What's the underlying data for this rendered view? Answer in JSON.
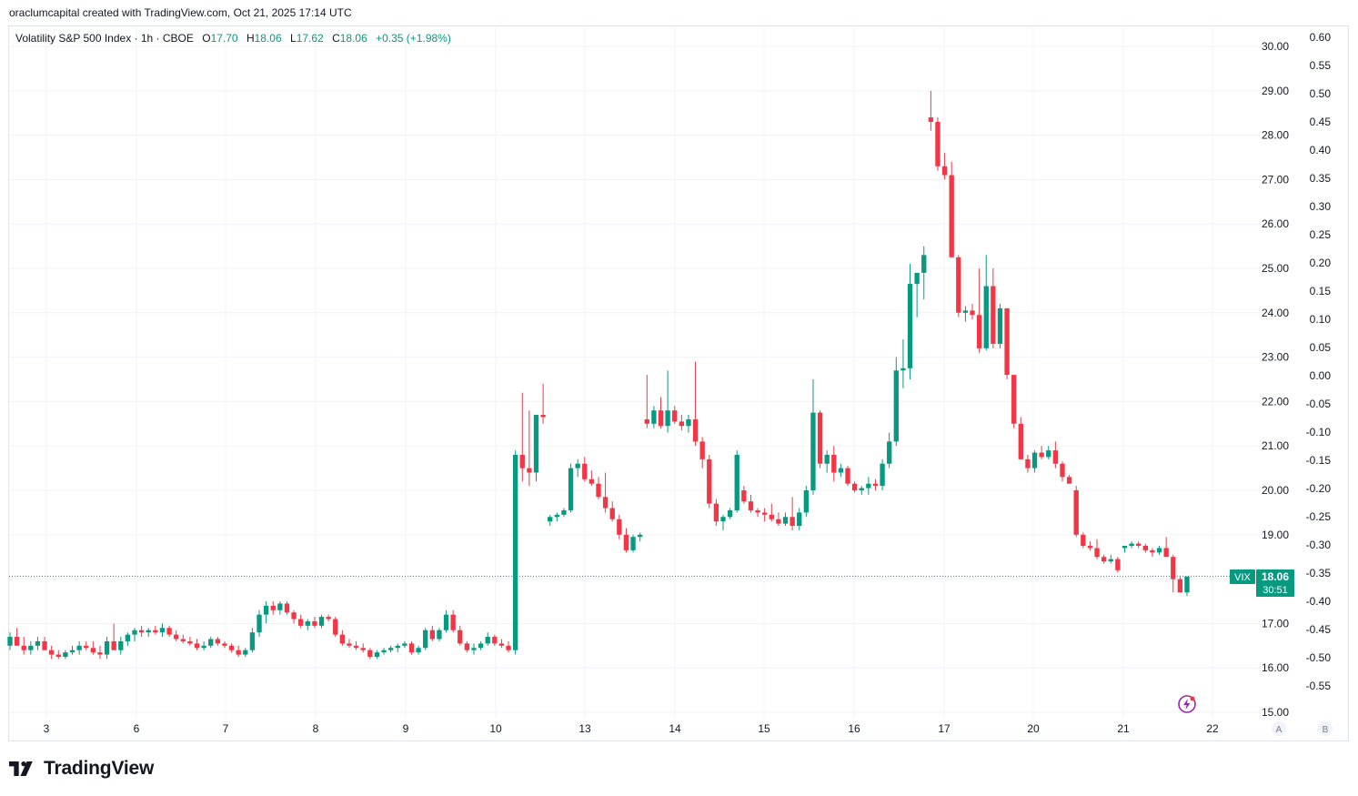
{
  "caption": "oraclumcapital created with TradingView.com, Oct 21, 2025 17:14 UTC",
  "legend": {
    "symbol": "Volatility S&P 500 Index · 1h · CBOE",
    "o_label": "O",
    "o_value": "17.70",
    "h_label": "H",
    "h_value": "18.06",
    "l_label": "L",
    "l_value": "17.62",
    "c_label": "C",
    "c_value": "18.06",
    "change": "+0.35 (+1.98%)"
  },
  "price_tag": {
    "ticker": "VIX",
    "price": "18.06",
    "countdown": "30:51"
  },
  "scale_buttons": [
    "A",
    "B"
  ],
  "brand": {
    "name": "TradingView",
    "logo_icon": "tradingview-logo-icon"
  },
  "colors": {
    "up": "#089981",
    "down": "#f23645",
    "grid": "#f0f3fa",
    "text": "#131722",
    "last": "#089981"
  },
  "chart_data": {
    "type": "candlestick",
    "title": "Volatility S&P 500 Index · 1h · CBOE",
    "x_ticks": [
      "3",
      "6",
      "7",
      "8",
      "9",
      "10",
      "13",
      "14",
      "15",
      "16",
      "17",
      "20",
      "21",
      "22"
    ],
    "y_left_label_ticks": [
      "15.00",
      "16.00",
      "17.00",
      "18.00",
      "19.00",
      "20.00",
      "21.00",
      "22.00",
      "23.00",
      "24.00",
      "25.00",
      "26.00",
      "27.00",
      "28.00",
      "29.00",
      "30.00"
    ],
    "y_right_ticks": [
      "0.60",
      "0.55",
      "0.50",
      "0.45",
      "0.40",
      "0.35",
      "0.30",
      "0.25",
      "0.20",
      "0.15",
      "0.10",
      "0.05",
      "0.00",
      "-0.05",
      "-0.10",
      "-0.15",
      "-0.20",
      "-0.25",
      "-0.30",
      "-0.35",
      "-0.40",
      "-0.45",
      "-0.50",
      "-0.55"
    ],
    "ylim": [
      15,
      30
    ],
    "last_price": 18.06,
    "grid": true,
    "candles": [
      [
        16.5,
        16.8,
        16.4,
        16.7
      ],
      [
        16.7,
        16.9,
        16.5,
        16.5
      ],
      [
        16.5,
        16.7,
        16.3,
        16.4
      ],
      [
        16.4,
        16.6,
        16.3,
        16.5
      ],
      [
        16.5,
        16.7,
        16.4,
        16.6
      ],
      [
        16.6,
        16.7,
        16.4,
        16.4
      ],
      [
        16.4,
        16.5,
        16.2,
        16.3
      ],
      [
        16.3,
        16.4,
        16.2,
        16.25
      ],
      [
        16.25,
        16.4,
        16.2,
        16.35
      ],
      [
        16.35,
        16.5,
        16.3,
        16.4
      ],
      [
        16.4,
        16.6,
        16.3,
        16.5
      ],
      [
        16.5,
        16.6,
        16.4,
        16.45
      ],
      [
        16.45,
        16.6,
        16.3,
        16.35
      ],
      [
        16.35,
        16.5,
        16.2,
        16.3
      ],
      [
        16.3,
        16.7,
        16.2,
        16.6
      ],
      [
        16.6,
        17.0,
        16.4,
        16.4
      ],
      [
        16.4,
        16.7,
        16.3,
        16.6
      ],
      [
        16.6,
        16.8,
        16.5,
        16.75
      ],
      [
        16.75,
        16.9,
        16.6,
        16.85
      ],
      [
        16.85,
        16.95,
        16.7,
        16.8
      ],
      [
        16.8,
        16.9,
        16.7,
        16.85
      ],
      [
        16.85,
        16.95,
        16.75,
        16.8
      ],
      [
        16.8,
        17.0,
        16.7,
        16.9
      ],
      [
        16.9,
        16.95,
        16.7,
        16.75
      ],
      [
        16.75,
        16.85,
        16.6,
        16.65
      ],
      [
        16.65,
        16.75,
        16.55,
        16.6
      ],
      [
        16.6,
        16.7,
        16.5,
        16.55
      ],
      [
        16.55,
        16.65,
        16.4,
        16.45
      ],
      [
        16.45,
        16.6,
        16.4,
        16.5
      ],
      [
        16.5,
        16.7,
        16.45,
        16.65
      ],
      [
        16.65,
        16.7,
        16.5,
        16.55
      ],
      [
        16.55,
        16.6,
        16.45,
        16.5
      ],
      [
        16.5,
        16.55,
        16.35,
        16.4
      ],
      [
        16.4,
        16.5,
        16.25,
        16.3
      ],
      [
        16.3,
        16.45,
        16.25,
        16.4
      ],
      [
        16.4,
        16.9,
        16.35,
        16.8
      ],
      [
        16.8,
        17.3,
        16.7,
        17.2
      ],
      [
        17.2,
        17.5,
        17.0,
        17.4
      ],
      [
        17.4,
        17.5,
        17.2,
        17.3
      ],
      [
        17.3,
        17.5,
        17.2,
        17.45
      ],
      [
        17.45,
        17.5,
        17.2,
        17.25
      ],
      [
        17.25,
        17.3,
        17.0,
        17.1
      ],
      [
        17.1,
        17.2,
        16.9,
        16.95
      ],
      [
        16.95,
        17.1,
        16.85,
        17.05
      ],
      [
        17.05,
        17.15,
        16.9,
        16.95
      ],
      [
        16.95,
        17.2,
        16.9,
        17.15
      ],
      [
        17.15,
        17.2,
        17.05,
        17.1
      ],
      [
        17.1,
        17.15,
        16.7,
        16.75
      ],
      [
        16.75,
        16.85,
        16.5,
        16.55
      ],
      [
        16.55,
        16.65,
        16.45,
        16.5
      ],
      [
        16.5,
        16.6,
        16.4,
        16.45
      ],
      [
        16.45,
        16.55,
        16.35,
        16.4
      ],
      [
        16.4,
        16.45,
        16.2,
        16.25
      ],
      [
        16.25,
        16.4,
        16.2,
        16.35
      ],
      [
        16.35,
        16.45,
        16.3,
        16.4
      ],
      [
        16.4,
        16.5,
        16.35,
        16.45
      ],
      [
        16.45,
        16.55,
        16.35,
        16.5
      ],
      [
        16.5,
        16.6,
        16.45,
        16.55
      ],
      [
        16.55,
        16.6,
        16.3,
        16.35
      ],
      [
        16.35,
        16.5,
        16.3,
        16.45
      ],
      [
        16.45,
        16.9,
        16.4,
        16.85
      ],
      [
        16.85,
        16.95,
        16.6,
        16.65
      ],
      [
        16.65,
        16.9,
        16.6,
        16.85
      ],
      [
        16.85,
        17.3,
        16.8,
        17.2
      ],
      [
        17.2,
        17.3,
        16.8,
        16.85
      ],
      [
        16.85,
        16.95,
        16.5,
        16.55
      ],
      [
        16.55,
        16.6,
        16.35,
        16.4
      ],
      [
        16.4,
        16.55,
        16.3,
        16.45
      ],
      [
        16.45,
        16.6,
        16.4,
        16.55
      ],
      [
        16.55,
        16.8,
        16.5,
        16.7
      ],
      [
        16.7,
        16.75,
        16.5,
        16.55
      ],
      [
        16.55,
        16.65,
        16.45,
        16.5
      ],
      [
        16.5,
        16.6,
        16.35,
        16.4
      ],
      [
        16.4,
        20.9,
        16.3,
        20.8
      ],
      [
        20.8,
        22.2,
        20.2,
        20.5
      ],
      [
        20.5,
        21.8,
        20.1,
        20.4
      ],
      [
        20.4,
        21.7,
        20.2,
        21.7
      ],
      [
        21.7,
        22.4,
        21.5,
        21.65
      ],
      [
        19.3,
        19.45,
        19.2,
        19.4
      ],
      [
        19.4,
        19.5,
        19.3,
        19.45
      ],
      [
        19.45,
        19.6,
        19.4,
        19.55
      ],
      [
        19.55,
        20.6,
        19.5,
        20.5
      ],
      [
        20.5,
        20.7,
        20.3,
        20.6
      ],
      [
        20.6,
        20.75,
        20.2,
        20.25
      ],
      [
        20.25,
        20.45,
        20.1,
        20.15
      ],
      [
        20.15,
        20.3,
        19.8,
        19.85
      ],
      [
        19.85,
        20.4,
        19.5,
        19.6
      ],
      [
        19.6,
        19.75,
        19.3,
        19.35
      ],
      [
        19.35,
        19.45,
        18.9,
        19.0
      ],
      [
        19.0,
        19.15,
        18.6,
        18.65
      ],
      [
        18.65,
        19.0,
        18.6,
        18.95
      ],
      [
        18.95,
        19.05,
        18.85,
        19.0
      ],
      [
        21.6,
        22.6,
        21.4,
        21.5
      ],
      [
        21.5,
        21.9,
        21.4,
        21.8
      ],
      [
        21.8,
        22.1,
        21.4,
        21.45
      ],
      [
        21.45,
        22.7,
        21.3,
        21.8
      ],
      [
        21.8,
        21.9,
        21.5,
        21.55
      ],
      [
        21.55,
        21.7,
        21.35,
        21.45
      ],
      [
        21.45,
        21.7,
        21.3,
        21.6
      ],
      [
        21.6,
        22.9,
        21.0,
        21.1
      ],
      [
        21.1,
        21.2,
        20.5,
        20.7
      ],
      [
        20.7,
        20.8,
        19.6,
        19.7
      ],
      [
        19.7,
        19.8,
        19.2,
        19.3
      ],
      [
        19.3,
        19.45,
        19.1,
        19.4
      ],
      [
        19.4,
        19.6,
        19.35,
        19.55
      ],
      [
        19.55,
        20.9,
        19.5,
        20.8
      ],
      [
        20.0,
        20.1,
        19.7,
        19.75
      ],
      [
        19.75,
        19.9,
        19.5,
        19.55
      ],
      [
        19.55,
        19.6,
        19.4,
        19.5
      ],
      [
        19.5,
        19.6,
        19.3,
        19.45
      ],
      [
        19.45,
        19.7,
        19.3,
        19.35
      ],
      [
        19.35,
        19.5,
        19.2,
        19.25
      ],
      [
        19.25,
        19.5,
        19.2,
        19.4
      ],
      [
        19.4,
        19.85,
        19.1,
        19.2
      ],
      [
        19.2,
        19.6,
        19.1,
        19.5
      ],
      [
        19.5,
        20.1,
        19.4,
        20.0
      ],
      [
        20.0,
        22.5,
        19.9,
        21.75
      ],
      [
        21.75,
        21.8,
        20.5,
        20.6
      ],
      [
        20.6,
        20.9,
        20.4,
        20.8
      ],
      [
        20.8,
        21.0,
        20.2,
        20.4
      ],
      [
        20.4,
        20.6,
        20.3,
        20.5
      ],
      [
        20.5,
        20.55,
        20.1,
        20.15
      ],
      [
        20.15,
        20.2,
        19.95,
        20.0
      ],
      [
        20.0,
        20.1,
        19.9,
        20.05
      ],
      [
        20.05,
        20.3,
        19.9,
        20.15
      ],
      [
        20.15,
        20.25,
        20.0,
        20.1
      ],
      [
        20.1,
        20.7,
        20.0,
        20.6
      ],
      [
        20.6,
        21.3,
        20.5,
        21.1
      ],
      [
        21.1,
        23.0,
        21.0,
        22.7
      ],
      [
        22.7,
        23.4,
        22.3,
        22.75
      ],
      [
        22.75,
        25.1,
        22.5,
        24.65
      ],
      [
        24.65,
        24.9,
        23.9,
        24.9
      ],
      [
        24.9,
        25.5,
        24.3,
        25.3
      ],
      [
        28.4,
        29.0,
        28.1,
        28.3
      ],
      [
        28.3,
        28.4,
        27.2,
        27.3
      ],
      [
        27.3,
        27.6,
        27.0,
        27.1
      ],
      [
        27.1,
        27.4,
        25.3,
        25.25
      ],
      [
        25.25,
        25.3,
        23.9,
        24.0
      ],
      [
        24.0,
        24.15,
        23.8,
        24.05
      ],
      [
        24.05,
        24.2,
        23.85,
        23.95
      ],
      [
        23.95,
        25.0,
        23.1,
        23.2
      ],
      [
        23.2,
        25.3,
        23.15,
        24.6
      ],
      [
        24.6,
        25.0,
        23.2,
        23.3
      ],
      [
        23.3,
        24.2,
        23.2,
        24.1
      ],
      [
        24.1,
        24.1,
        22.5,
        22.6
      ],
      [
        22.6,
        22.6,
        21.4,
        21.5
      ],
      [
        21.5,
        21.65,
        20.7,
        20.7
      ],
      [
        20.7,
        20.8,
        20.4,
        20.5
      ],
      [
        20.5,
        20.9,
        20.4,
        20.85
      ],
      [
        20.85,
        21.0,
        20.7,
        20.75
      ],
      [
        20.75,
        21.0,
        20.7,
        20.9
      ],
      [
        20.9,
        21.1,
        20.5,
        20.6
      ],
      [
        20.6,
        20.65,
        20.2,
        20.3
      ],
      [
        20.3,
        20.35,
        20.15,
        20.15
      ],
      [
        20.0,
        20.1,
        18.95,
        19.0
      ],
      [
        19.0,
        19.05,
        18.7,
        18.75
      ],
      [
        18.75,
        18.85,
        18.65,
        18.7
      ],
      [
        18.7,
        18.9,
        18.45,
        18.5
      ],
      [
        18.5,
        18.55,
        18.35,
        18.4
      ],
      [
        18.4,
        18.55,
        18.35,
        18.45
      ],
      [
        18.45,
        18.5,
        18.15,
        18.2
      ],
      [
        18.7,
        18.75,
        18.6,
        18.75
      ],
      [
        18.75,
        18.85,
        18.7,
        18.8
      ],
      [
        18.8,
        18.85,
        18.7,
        18.75
      ],
      [
        18.75,
        18.8,
        18.6,
        18.65
      ],
      [
        18.65,
        18.7,
        18.5,
        18.6
      ],
      [
        18.6,
        18.75,
        18.55,
        18.7
      ],
      [
        18.7,
        18.95,
        18.5,
        18.5
      ],
      [
        18.5,
        18.55,
        17.7,
        18.0
      ],
      [
        18.0,
        18.05,
        17.75,
        17.7
      ],
      [
        17.7,
        18.06,
        17.62,
        18.06
      ]
    ]
  }
}
